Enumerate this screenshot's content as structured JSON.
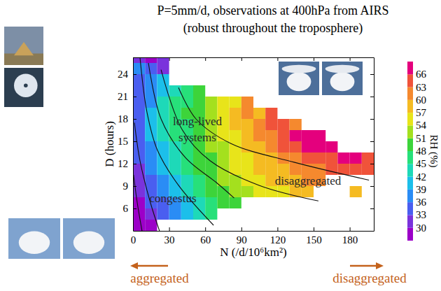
{
  "chart_data": {
    "type": "heatmap",
    "title": "P=5mm/d, observations at 400hPa from AIRS",
    "subtitle": "(robust throughout the troposphere)",
    "x_label": "N (/d/10⁶km²)",
    "y_label": "D (hours)",
    "xlim": [
      0,
      200
    ],
    "ylim": [
      3,
      26.25
    ],
    "xticks": [
      0,
      30,
      60,
      90,
      120,
      150,
      180
    ],
    "yticks": [
      6,
      9,
      12,
      15,
      18,
      21,
      24
    ],
    "grid": false,
    "x_edges": [
      0,
      10,
      20,
      30,
      40,
      50,
      60,
      70,
      80,
      90,
      100,
      110,
      120,
      130,
      140,
      150,
      160,
      170,
      180,
      190,
      200
    ],
    "y_edges": [
      3,
      4.5,
      6,
      7.5,
      9,
      10.5,
      12,
      13.5,
      15,
      16.5,
      18,
      19.5,
      21,
      22.5,
      24,
      25.5,
      27
    ],
    "rh": [
      [
        29,
        29,
        null,
        null,
        null,
        null,
        null,
        null,
        null,
        null,
        null,
        null,
        null,
        null,
        null,
        null,
        null,
        null,
        null,
        null
      ],
      [
        29,
        32,
        34,
        37,
        40,
        43,
        45,
        null,
        null,
        null,
        null,
        null,
        null,
        null,
        null,
        null,
        null,
        null,
        null,
        null
      ],
      [
        29,
        33,
        35,
        38,
        41,
        44,
        47,
        48,
        49,
        null,
        null,
        null,
        null,
        null,
        null,
        null,
        null,
        null,
        null,
        null
      ],
      [
        31,
        34,
        37,
        40,
        43,
        46,
        48,
        50,
        52,
        53,
        55,
        54,
        56,
        58,
        57,
        null,
        null,
        null,
        58,
        null
      ],
      [
        32,
        35,
        38,
        41,
        44,
        47,
        49,
        51,
        53,
        54,
        56,
        57,
        58,
        59,
        61,
        60,
        null,
        null,
        null,
        null
      ],
      [
        32,
        36,
        39,
        42,
        45,
        48,
        50,
        52,
        54,
        55,
        57,
        58,
        59,
        60,
        61,
        62,
        63,
        64,
        64,
        63
      ],
      [
        33,
        37,
        40,
        43,
        46,
        48,
        50,
        52,
        54,
        56,
        58,
        59,
        61,
        62,
        63,
        64,
        65,
        66,
        67,
        65
      ],
      [
        34,
        38,
        41,
        44,
        47,
        49,
        51,
        53,
        55,
        57,
        59,
        61,
        63,
        65,
        66,
        67,
        68,
        null,
        null,
        null
      ],
      [
        34,
        39,
        42,
        45,
        47,
        49,
        52,
        54,
        56,
        58,
        60,
        62,
        64,
        66,
        67,
        68,
        null,
        null,
        null,
        null
      ],
      [
        35,
        40,
        43,
        45,
        47,
        50,
        52,
        55,
        57,
        58,
        61,
        63,
        64,
        62,
        null,
        null,
        null,
        null,
        null,
        null
      ],
      [
        35,
        39,
        44,
        46,
        48,
        50,
        53,
        55,
        57,
        60,
        59,
        63,
        null,
        null,
        null,
        null,
        null,
        null,
        null,
        null
      ],
      [
        34,
        38,
        42,
        45,
        47,
        50,
        52,
        55,
        56,
        61,
        null,
        null,
        null,
        null,
        null,
        null,
        null,
        null,
        null,
        null
      ],
      [
        33,
        37,
        41,
        44,
        46,
        49,
        null,
        null,
        null,
        null,
        null,
        null,
        null,
        null,
        null,
        null,
        null,
        null,
        null,
        null
      ],
      [
        34,
        37,
        40,
        null,
        null,
        null,
        null,
        null,
        null,
        null,
        null,
        null,
        null,
        null,
        null,
        null,
        null,
        null,
        null,
        null
      ],
      [
        37,
        34,
        32,
        null,
        null,
        null,
        null,
        null,
        null,
        null,
        null,
        null,
        null,
        null,
        null,
        null,
        null,
        null,
        null,
        null
      ],
      [
        31,
        29,
        31,
        null,
        null,
        null,
        null,
        null,
        null,
        null,
        null,
        null,
        null,
        null,
        null,
        null,
        null,
        null,
        null,
        null
      ]
    ],
    "contours": [
      {
        "x": [
          0.5,
          3.5,
          7.5
        ],
        "y": [
          10.5,
          6.8,
          3.0
        ]
      },
      {
        "x": [
          1.2,
          5.8,
          14.5,
          22
        ],
        "y": [
          17.5,
          12.4,
          6.75,
          3.0
        ]
      },
      {
        "x": [
          5.8,
          11.6,
          20.3,
          37.8,
          66.9
        ],
        "y": [
          26.25,
          18.9,
          13.8,
          9.1,
          3.75
        ]
      },
      {
        "x": [
          12.8,
          23.3,
          43.6,
          69.8,
          84
        ],
        "y": [
          25.5,
          18.0,
          12.8,
          9.4,
          7.4
        ]
      },
      {
        "x": [
          23.3,
          40.7,
          64,
          104.7,
          154
        ],
        "y": [
          24.6,
          16.6,
          12.4,
          9.1,
          7.0
        ]
      },
      {
        "x": [
          37.8,
          52.3,
          81.4,
          133.7,
          196
        ],
        "y": [
          22.2,
          18.0,
          14.7,
          12.2,
          9.8
        ]
      }
    ],
    "colorbar": {
      "label": "RH (%)",
      "lim": [
        27,
        69
      ],
      "ticks": [
        30,
        33,
        36,
        39,
        42,
        45,
        48,
        51,
        54,
        57,
        60,
        63,
        66
      ],
      "levels": [
        27,
        30,
        33,
        36,
        39,
        42,
        45,
        48,
        51,
        54,
        57,
        60,
        63,
        66,
        69
      ],
      "colors": [
        "#9c00c8",
        "#7a33dc",
        "#4a5ef0",
        "#2a8cf5",
        "#1cbfea",
        "#1ed9b8",
        "#27e07a",
        "#3dd43a",
        "#a4e01e",
        "#e8e41a",
        "#f5bb22",
        "#f5892e",
        "#f0533a",
        "#e4007d"
      ]
    },
    "annotations": [
      "long-lived",
      "systems",
      "congestus",
      "disaggregated"
    ],
    "direction_labels": [
      "aggregated",
      "disaggregated"
    ]
  }
}
